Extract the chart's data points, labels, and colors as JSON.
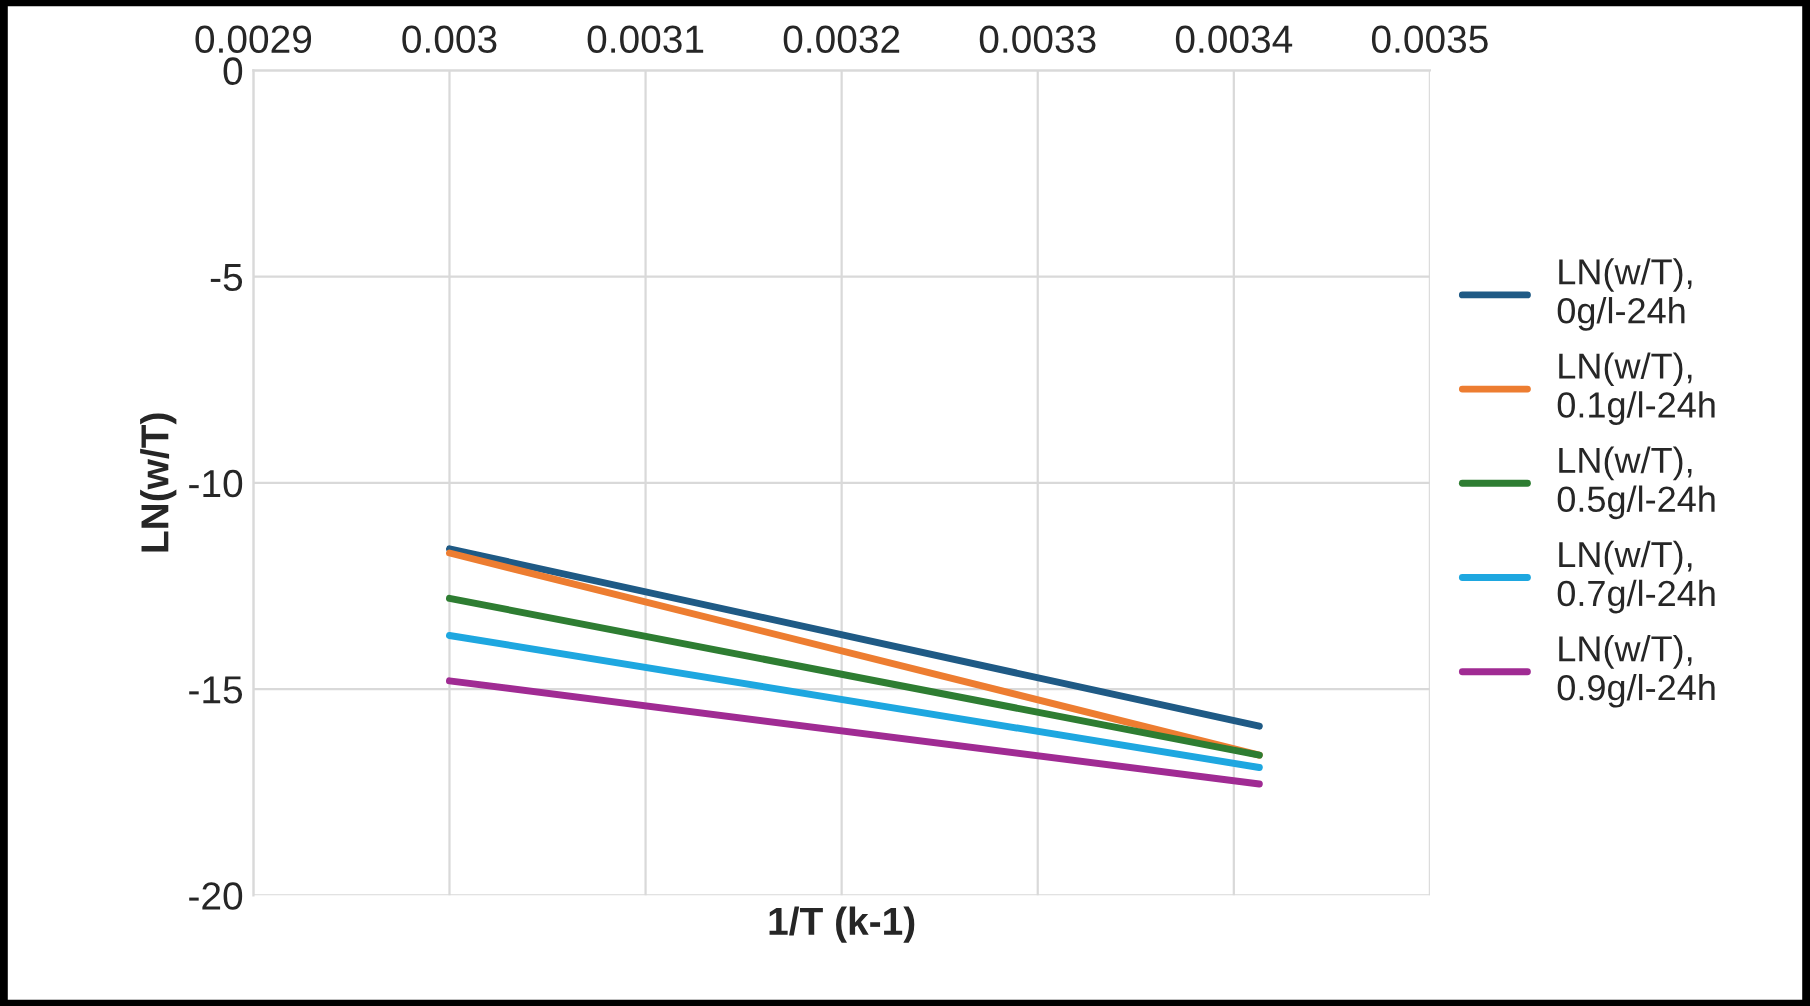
{
  "chart_data": {
    "type": "line",
    "xlabel": "1/T (k-1)",
    "ylabel": "LN(w/T)",
    "x": [
      0.003,
      0.003413
    ],
    "series": [
      {
        "name": "LN(w/T), 0g/l-24h",
        "color": "#1f5a85",
        "values": [
          -11.6,
          -15.9
        ]
      },
      {
        "name": "LN(w/T), 0.1g/l-24h",
        "color": "#ed7d31",
        "values": [
          -11.7,
          -16.6
        ]
      },
      {
        "name": "LN(w/T), 0.5g/l-24h",
        "color": "#2e7d32",
        "values": [
          -12.8,
          -16.6
        ]
      },
      {
        "name": "LN(w/T), 0.7g/l-24h",
        "color": "#1ea7e0",
        "values": [
          -13.7,
          -16.9
        ]
      },
      {
        "name": "LN(w/T), 0.9g/l-24h",
        "color": "#a02b93",
        "values": [
          -14.8,
          -17.3
        ]
      }
    ],
    "xlim": [
      0.0029,
      0.0035
    ],
    "xticks": [
      {
        "value": 0.0029,
        "label": "0.0029"
      },
      {
        "value": 0.003,
        "label": "0.003"
      },
      {
        "value": 0.0031,
        "label": "0.0031"
      },
      {
        "value": 0.0032,
        "label": "0.0032"
      },
      {
        "value": 0.0033,
        "label": "0.0033"
      },
      {
        "value": 0.0034,
        "label": "0.0034"
      },
      {
        "value": 0.0035,
        "label": "0.0035"
      }
    ],
    "ylim": [
      -20,
      0
    ],
    "yticks": [
      0,
      -5,
      -10,
      -15,
      -20
    ],
    "grid": true,
    "legend": "right",
    "marker": "none",
    "line_style": "solid"
  }
}
